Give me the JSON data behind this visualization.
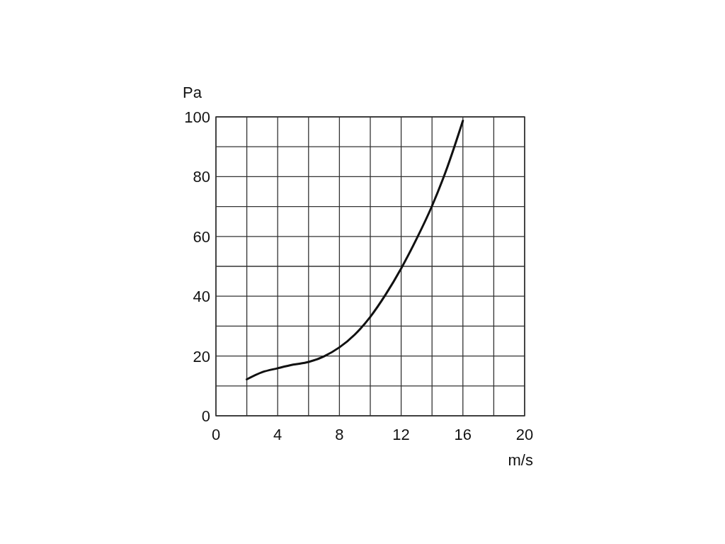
{
  "chart_data": {
    "type": "line",
    "xlabel": "m/s",
    "ylabel": "Pa",
    "xlim": [
      0,
      20
    ],
    "ylim": [
      0,
      100
    ],
    "xticks": [
      0,
      {
        "value": 2,
        "label": null
      },
      4,
      {
        "value": 6,
        "label": null
      },
      8,
      {
        "value": 10,
        "label": null
      },
      12,
      {
        "value": 14,
        "label": null
      },
      16,
      {
        "value": 18,
        "label": null
      },
      20
    ],
    "yticks": [
      0,
      {
        "value": 10,
        "label": null
      },
      20,
      {
        "value": 30,
        "label": null
      },
      40,
      {
        "value": 50,
        "label": null
      },
      60,
      {
        "value": 70,
        "label": null
      },
      80,
      {
        "value": 90,
        "label": null
      },
      100
    ],
    "grid": true,
    "marker": "none",
    "line_style": "solid",
    "series": [
      {
        "color": "#111111",
        "x": [
          2,
          3,
          4,
          5,
          6,
          7,
          8,
          9,
          10,
          11,
          12,
          13,
          14,
          15,
          16
        ],
        "values": [
          12.2,
          14.6,
          15.9,
          17.1,
          18.0,
          19.9,
          22.9,
          27.2,
          33.1,
          40.6,
          49.3,
          59.2,
          70.2,
          83.3,
          98.7
        ]
      }
    ]
  }
}
